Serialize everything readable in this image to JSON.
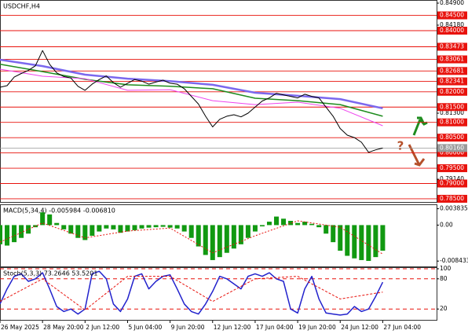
{
  "chart_data": [
    {
      "type": "line",
      "title": "USDCHF,H4",
      "annotation": "?",
      "xlim": [
        0,
        61.6
      ],
      "ylim": [
        0.7837,
        0.849
      ],
      "yticks": [
        {
          "value": 0.849,
          "label": "0.84900"
        },
        {
          "value": 0.8418,
          "label": "0.84180"
        },
        {
          "value": 0.813,
          "label": "0.81300"
        },
        {
          "value": 0.7914,
          "label": "0.79140"
        }
      ],
      "levels": [
        {
          "value": 0.845,
          "label": "0.84500"
        },
        {
          "value": 0.84,
          "label": "0.84000"
        },
        {
          "value": 0.83473,
          "label": "0.83473"
        },
        {
          "value": 0.83061,
          "label": "0.83061"
        },
        {
          "value": 0.82681,
          "label": "0.82681"
        },
        {
          "value": 0.82341,
          "label": "0.82341"
        },
        {
          "value": 0.82,
          "label": "0.82000"
        },
        {
          "value": 0.815,
          "label": "0.81500"
        },
        {
          "value": 0.81,
          "label": "0.81000"
        },
        {
          "value": 0.805,
          "label": "0.80500"
        },
        {
          "value": 0.8,
          "label": "0.80000"
        },
        {
          "value": 0.795,
          "label": "0.79500"
        },
        {
          "value": 0.79,
          "label": "0.79000"
        },
        {
          "value": 0.785,
          "label": "0.78500"
        }
      ],
      "level_color": "#e8120c",
      "current": {
        "value": 0.8016,
        "label": "0.80160"
      },
      "series": [
        {
          "type": "line",
          "color": "#7b68ee",
          "width": 2.5,
          "x": [
            0,
            6,
            12,
            18,
            24,
            30,
            36,
            42,
            48,
            54
          ],
          "values": [
            0.8305,
            0.8284,
            0.8256,
            0.8243,
            0.8235,
            0.8223,
            0.8197,
            0.8187,
            0.8176,
            0.8146
          ]
        },
        {
          "type": "line",
          "color": "#1e8c1e",
          "width": 1.5,
          "x": [
            0,
            6,
            12,
            18,
            24,
            30,
            36,
            42,
            48,
            54
          ],
          "values": [
            0.829,
            0.8266,
            0.8241,
            0.8223,
            0.8218,
            0.821,
            0.8179,
            0.8171,
            0.8158,
            0.812
          ]
        },
        {
          "type": "line",
          "color": "#ee44ee",
          "width": 1,
          "x": [
            0,
            6,
            12,
            18,
            24,
            30,
            36,
            42,
            48,
            54
          ],
          "values": [
            0.8274,
            0.8251,
            0.8243,
            0.8205,
            0.8207,
            0.8171,
            0.8158,
            0.8166,
            0.8146,
            0.8089
          ]
        },
        {
          "type": "line",
          "color": "#000000",
          "width": 1,
          "values": [
            0.8215,
            0.822,
            0.8248,
            0.826,
            0.827,
            0.8285,
            0.8335,
            0.829,
            0.8262,
            0.825,
            0.8245,
            0.8218,
            0.8205,
            0.8225,
            0.824,
            0.8252,
            0.823,
            0.8215,
            0.8228,
            0.824,
            0.8235,
            0.8225,
            0.8232,
            0.8238,
            0.8228,
            0.8225,
            0.821,
            0.8185,
            0.816,
            0.812,
            0.8085,
            0.811,
            0.812,
            0.8125,
            0.8118,
            0.813,
            0.815,
            0.817,
            0.818,
            0.8195,
            0.819,
            0.8185,
            0.818,
            0.8192,
            0.8185,
            0.818,
            0.815,
            0.812,
            0.808,
            0.8058,
            0.805,
            0.8035,
            0.8002,
            0.801,
            0.8016
          ]
        }
      ]
    },
    {
      "type": "bar",
      "title": "MACD(5,34,4) -0.005984 -0.006810",
      "xlim": [
        0,
        61.6
      ],
      "ylim": [
        -0.0095,
        0.0045
      ],
      "yticks": [
        0.003835,
        {
          "value": 0,
          "label": "0.00"
        },
        -0.008433
      ],
      "series": [
        {
          "type": "bar",
          "color": "#119911",
          "values": [
            -0.0045,
            -0.0048,
            -0.004,
            -0.003,
            -0.002,
            -0.0005,
            0.003,
            0.0025,
            0.0005,
            -0.001,
            -0.002,
            -0.003,
            -0.0035,
            -0.0025,
            -0.0015,
            -0.0008,
            -0.001,
            -0.0018,
            -0.0015,
            -0.0012,
            -0.0008,
            -0.0006,
            -0.0005,
            -0.0004,
            -0.0006,
            -0.0008,
            -0.0015,
            -0.003,
            -0.005,
            -0.007,
            -0.0082,
            -0.0075,
            -0.0065,
            -0.0055,
            -0.0045,
            -0.003,
            -0.0015,
            -0.0003,
            0.0008,
            0.002,
            0.0015,
            0.001,
            0.0005,
            0.0008,
            0.0003,
            -0.0005,
            -0.002,
            -0.004,
            -0.006,
            -0.0072,
            -0.0078,
            -0.0082,
            -0.0084,
            -0.0075,
            -0.006
          ]
        },
        {
          "type": "line",
          "color": "#e8120c",
          "width": 1,
          "dash": "2 2",
          "x": [
            0,
            6,
            12,
            18,
            24,
            30,
            36,
            42,
            48,
            54
          ],
          "values": [
            -0.004,
            0.0005,
            -0.003,
            -0.0014,
            -0.0007,
            -0.0065,
            -0.0025,
            0.001,
            -0.0005,
            -0.0068
          ]
        }
      ]
    },
    {
      "type": "line",
      "title": "Stoch(5,3,3) 73.2646 53.5201",
      "xlim": [
        0,
        61.6
      ],
      "ylim": [
        0,
        100
      ],
      "yticks": [
        100,
        80,
        20
      ],
      "grid": {
        "color": "#e8120c",
        "dash": "5 4"
      },
      "xticks": [
        {
          "value": 0,
          "label": "26 May 2025"
        },
        {
          "value": 6,
          "label": "28 May 20:00"
        },
        {
          "value": 12,
          "label": "2 Jun 12:00"
        },
        {
          "value": 18,
          "label": "5 Jun 04:00"
        },
        {
          "value": 24,
          "label": "9 Jun 20:00"
        },
        {
          "value": 30,
          "label": "12 Jun 12:00"
        },
        {
          "value": 36,
          "label": "17 Jun 04:00"
        },
        {
          "value": 42,
          "label": "19 Jun 20:00"
        },
        {
          "value": 48,
          "label": "24 Jun 12:00"
        },
        {
          "value": 54,
          "label": "27 Jun 04:00"
        }
      ],
      "series": [
        {
          "type": "line",
          "color": "#2222cc",
          "width": 1.5,
          "values": [
            30,
            60,
            85,
            90,
            75,
            80,
            92,
            60,
            25,
            15,
            20,
            10,
            20,
            90,
            95,
            80,
            30,
            15,
            40,
            85,
            90,
            60,
            75,
            85,
            88,
            60,
            30,
            15,
            10,
            30,
            55,
            85,
            80,
            70,
            60,
            85,
            90,
            85,
            92,
            80,
            75,
            20,
            12,
            60,
            85,
            40,
            12,
            10,
            8,
            10,
            25,
            15,
            20,
            45,
            73.2646
          ]
        },
        {
          "type": "line",
          "color": "#e8120c",
          "width": 1,
          "dash": "3 2",
          "x": [
            0,
            6,
            12,
            18,
            24,
            30,
            36,
            42,
            48,
            54
          ],
          "values": [
            35,
            80,
            18,
            85,
            85,
            35,
            80,
            85,
            40,
            53.5201
          ]
        }
      ]
    }
  ]
}
